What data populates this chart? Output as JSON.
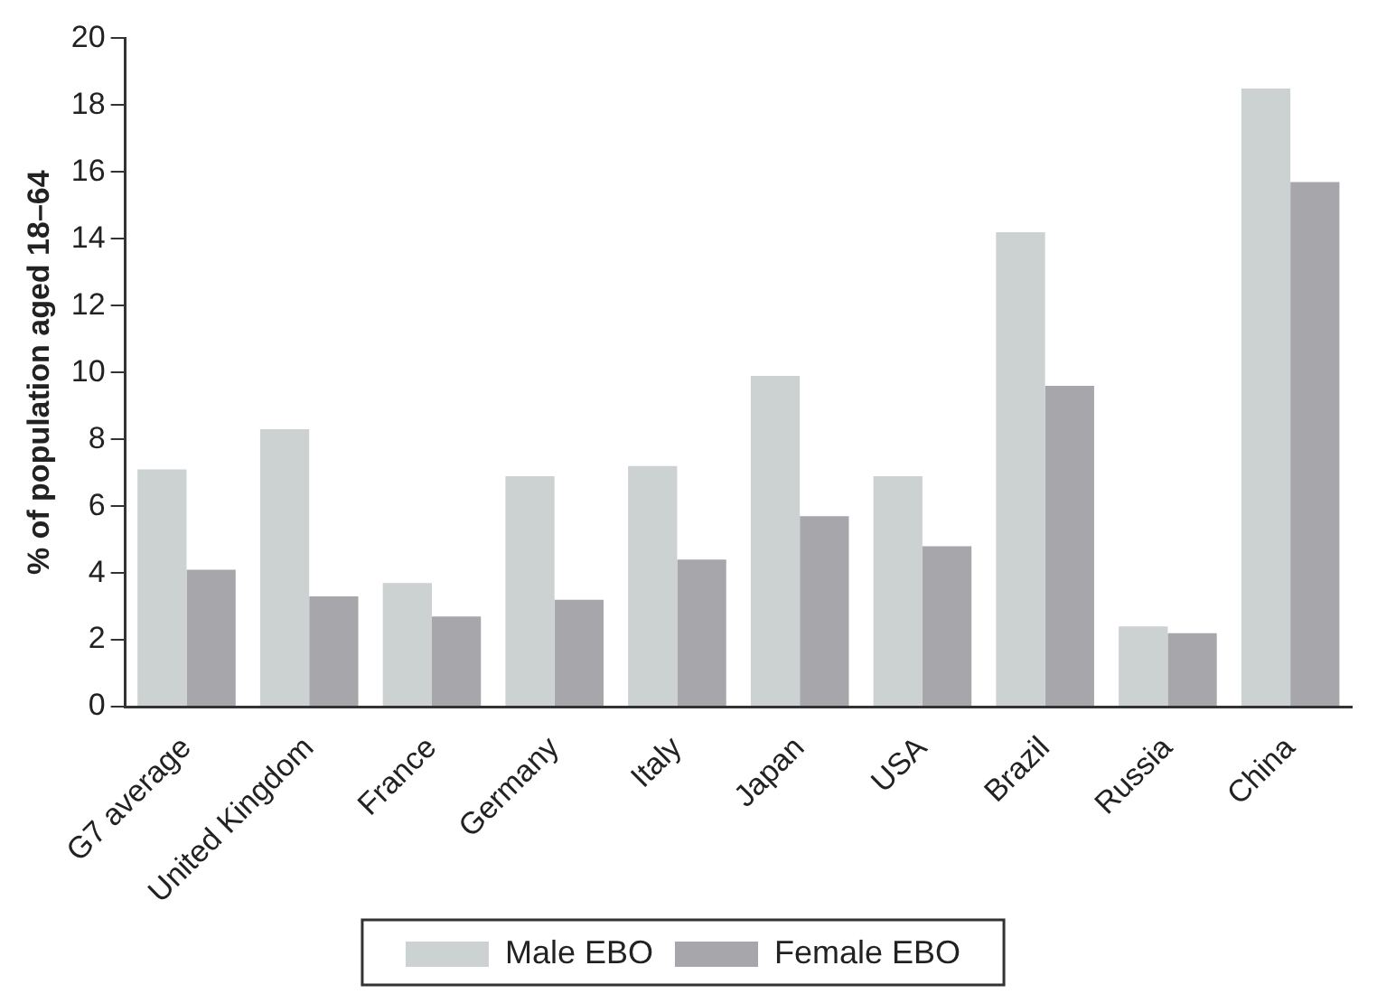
{
  "chart_data": {
    "type": "bar",
    "ylabel": "% of population aged 18–64",
    "categories": [
      "G7 average",
      "United Kingdom",
      "France",
      "Germany",
      "Italy",
      "Japan",
      "USA",
      "Brazil",
      "Russia",
      "China"
    ],
    "series": [
      {
        "name": "Male EBO",
        "color": "#ccd1d1",
        "values": [
          7.1,
          8.3,
          3.7,
          6.9,
          7.2,
          9.9,
          6.9,
          14.2,
          2.4,
          18.5
        ]
      },
      {
        "name": "Female EBO",
        "color": "#a7a6ab",
        "values": [
          4.1,
          3.3,
          2.7,
          3.2,
          4.4,
          5.7,
          4.8,
          9.6,
          2.2,
          15.7
        ]
      }
    ],
    "ylim": [
      0,
      20
    ],
    "yticks": [
      0,
      2,
      4,
      6,
      8,
      10,
      12,
      14,
      16,
      18,
      20
    ],
    "grid": false,
    "legend": "bottom"
  }
}
